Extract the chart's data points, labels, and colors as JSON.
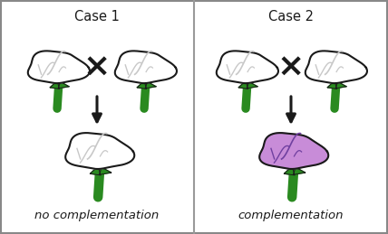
{
  "title_case1": "Case 1",
  "title_case2": "Case 2",
  "label_case1": "no complementation",
  "label_case2": "complementation",
  "bg_color": "#ffffff",
  "border_color": "#888888",
  "flower_white_fill": "#ffffff",
  "flower_white_detail": "#c8c8c8",
  "flower_white_outline": "#1a1a1a",
  "flower_purple_fill": "#c88cd8",
  "flower_purple_detail": "#7040a0",
  "flower_purple_outline": "#1a1a1a",
  "stem_color": "#2a8a20",
  "cross_color": "#1a1a1a",
  "arrow_color": "#1a1a1a",
  "divider_color": "#999999",
  "text_color": "#1a1a1a",
  "title_fontsize": 10.5,
  "label_fontsize": 9.5
}
